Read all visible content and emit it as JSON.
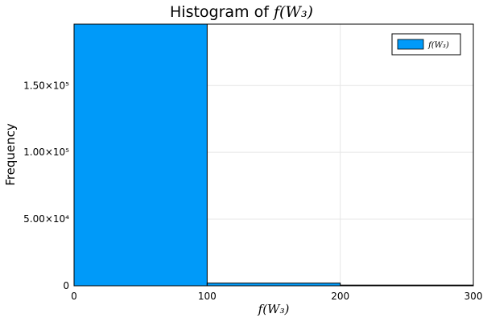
{
  "chart_data": {
    "type": "bar",
    "title_prefix": "Histogram of ",
    "title_math": "f(W₃)",
    "xlabel": "f(W₃)",
    "ylabel": "Frequency",
    "xlim": [
      0,
      300
    ],
    "ylim": [
      0,
      196000
    ],
    "x_ticks": [
      {
        "value": 0,
        "label": "0"
      },
      {
        "value": 100,
        "label": "100"
      },
      {
        "value": 200,
        "label": "200"
      },
      {
        "value": 300,
        "label": "300"
      }
    ],
    "y_ticks": [
      {
        "value": 0,
        "label": "0"
      },
      {
        "value": 50000,
        "label": "5.00×10⁴"
      },
      {
        "value": 100000,
        "label": "1.00×10⁵"
      },
      {
        "value": 150000,
        "label": "1.50×10⁵"
      }
    ],
    "bins": [
      {
        "start": 0,
        "end": 100,
        "count": 196000
      },
      {
        "start": 100,
        "end": 200,
        "count": 2000
      },
      {
        "start": 200,
        "end": 300,
        "count": 500
      }
    ],
    "series": [
      {
        "name": "f(W₃)",
        "color": "#009AF9"
      }
    ],
    "legend": "top-right",
    "grid": true
  }
}
